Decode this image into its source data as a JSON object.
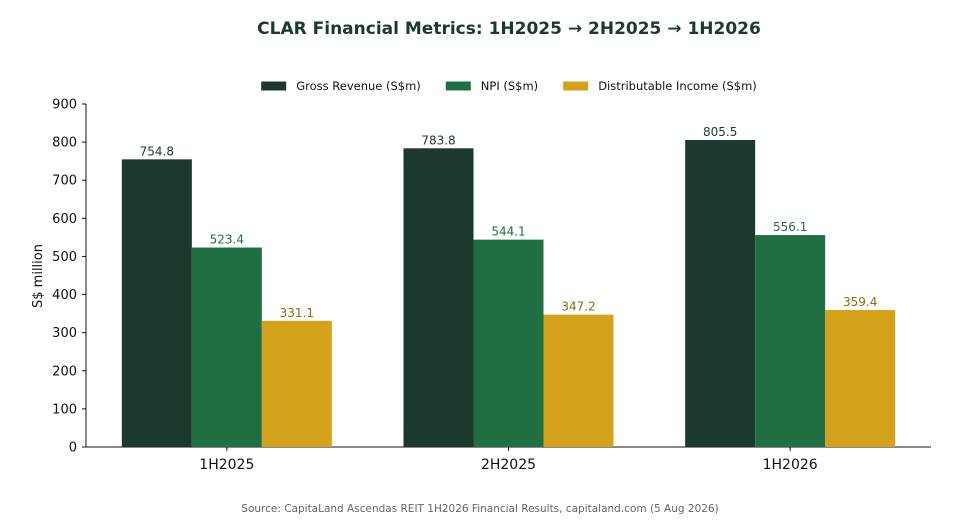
{
  "chart_data": {
    "type": "bar",
    "title": "CLAR Financial Metrics: 1H2025 → 2H2025 → 1H2026",
    "categories": [
      "1H2025",
      "2H2025",
      "1H2026"
    ],
    "series": [
      {
        "name": "Gross Revenue (S$m)",
        "values": [
          754.8,
          783.8,
          805.5
        ],
        "color": "#1b3a2d",
        "label_color": "#1b3a2d"
      },
      {
        "name": "NPI (S$m)",
        "values": [
          523.4,
          544.1,
          556.1
        ],
        "color": "#206f42",
        "label_color": "#206f42"
      },
      {
        "name": "Distributable Income (S$m)",
        "values": [
          331.1,
          347.2,
          359.4
        ],
        "color": "#d4a11a",
        "label_color": "#8a6d0f"
      }
    ],
    "xlabel": "",
    "ylabel": "S$ million",
    "ylim": [
      0,
      900
    ],
    "yticks": [
      0,
      100,
      200,
      300,
      400,
      500,
      600,
      700,
      800,
      900
    ],
    "grid": false,
    "legend": "top-center",
    "source": "Source: CapitaLand Ascendas REIT 1H2026 Financial Results, capitaland.com (5 Aug 2026)"
  }
}
